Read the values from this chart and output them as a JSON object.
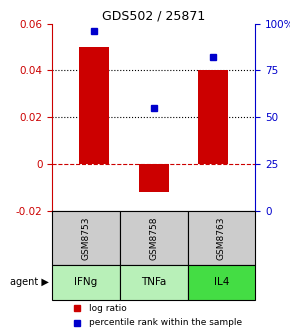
{
  "title": "GDS502 / 25871",
  "categories": [
    0,
    1,
    2
  ],
  "sample_labels": [
    "GSM8753",
    "GSM8758",
    "GSM8763"
  ],
  "agent_labels": [
    "IFNg",
    "TNFa",
    "IL4"
  ],
  "log_ratios": [
    0.05,
    -0.012,
    0.04
  ],
  "percentile_ranks": [
    96,
    55,
    82
  ],
  "bar_color": "#cc0000",
  "dot_color": "#0000cc",
  "left_ylim": [
    -0.02,
    0.06
  ],
  "right_ylim": [
    0,
    100
  ],
  "left_yticks": [
    -0.02,
    0,
    0.02,
    0.04,
    0.06
  ],
  "right_yticks": [
    0,
    25,
    50,
    75,
    100
  ],
  "hlines_dotted": [
    0.02,
    0.04
  ],
  "hline_dashed": 0.0,
  "bar_width": 0.5,
  "sample_box_color": "#cccccc",
  "agent_colors": [
    "#b8f0b8",
    "#b8f0b8",
    "#44dd44"
  ],
  "sample_box_edge": "black",
  "legend_bar_label": "log ratio",
  "legend_dot_label": "percentile rank within the sample",
  "left_axis_color": "#cc0000",
  "right_axis_color": "#0000cc",
  "figsize": [
    2.9,
    3.36
  ],
  "dpi": 100
}
